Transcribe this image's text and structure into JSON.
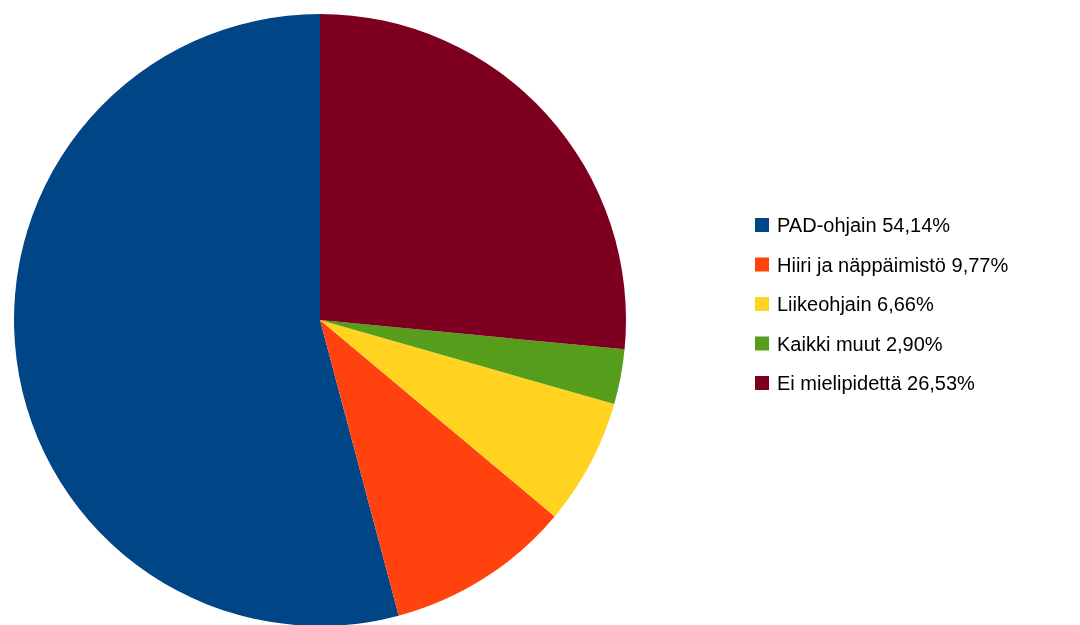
{
  "chart_data": {
    "type": "pie",
    "categories": [
      "PAD-ohjain 54,14%",
      "Hiiri ja näppäimistö 9,77%",
      "Liikeohjain 6,66%",
      "Kaikki muut 2,90%",
      "Ei mielipidettä 26,53%"
    ],
    "values": [
      54.14,
      9.77,
      6.66,
      2.9,
      26.53
    ],
    "colors": [
      "#004586",
      "#ff420e",
      "#ffd320",
      "#579d1c",
      "#7e0021"
    ],
    "legend": "right"
  }
}
